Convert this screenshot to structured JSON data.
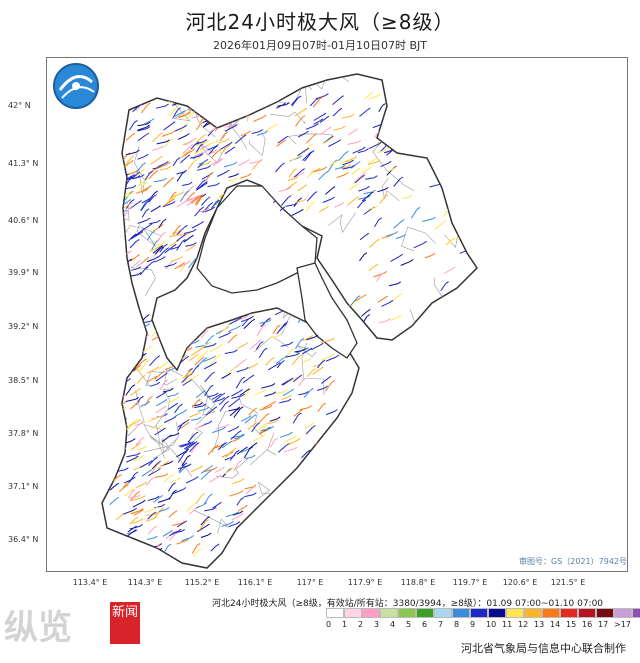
{
  "header": {
    "title": "河北24小时极大风（≥8级）",
    "subtitle": "2026年01月09日07时-01月10日07时 BJT"
  },
  "axes": {
    "latitudes": [
      "42° N",
      "41.3° N",
      "40.6° N",
      "39.9° N",
      "39.2° N",
      "38.5° N",
      "37.8° N",
      "37.1° N",
      "36.4° N"
    ],
    "longitudes": [
      "113.4° E",
      "114.3° E",
      "115.2° E",
      "116.1° E",
      "117° E",
      "117.9° E",
      "118.8° E",
      "119.7° E",
      "120.6° E",
      "121.5° E"
    ]
  },
  "map": {
    "review_number": "审图号：GS（2021）7942号",
    "fill_color": "#ffffff",
    "border_color": "#333333",
    "county_line_color": "#9a9a9a"
  },
  "legend": {
    "title": "河北24小时极大风（≥8级，有效站/所有站：3380/3994，≥8级）：01.09 07:00~01.10 07:00",
    "levels": [
      "0",
      "1",
      "2",
      "3",
      "4",
      "5",
      "6",
      "7",
      "8",
      "9",
      "10",
      "11",
      "12",
      "13",
      "14",
      "15",
      "16",
      "17",
      ">17"
    ],
    "colors": [
      "#ffffff",
      "#ffd5e5",
      "#ff9ec2",
      "#c8e0a0",
      "#8cc850",
      "#3ca028",
      "#a8d8f0",
      "#3c8cdc",
      "#1e28c8",
      "#0a0a8c",
      "#ffe650",
      "#ffb428",
      "#ff7814",
      "#e6281e",
      "#b4141e",
      "#780a14",
      "#c8a0d8",
      "#8c50b4",
      "#501478"
    ]
  },
  "footer": {
    "credit": "河北省气象局与信息中心联合制作"
  },
  "watermark": {
    "text": "纵览",
    "badge": "新闻"
  }
}
